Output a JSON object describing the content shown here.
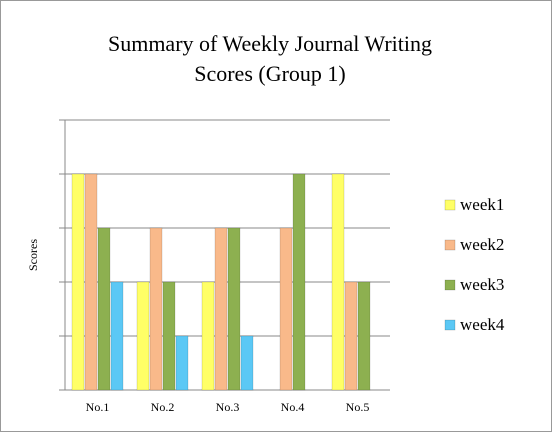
{
  "chart_data": {
    "type": "bar",
    "title": [
      "Summary of Weekly Journal Writing",
      "Scores (Group 1)"
    ],
    "ylabel": "Scores",
    "categories": [
      "No.1",
      "No.2",
      "No.3",
      "No.4",
      "No.5"
    ],
    "series": [
      {
        "name": "week1",
        "color": "#ffff66",
        "values": [
          4,
          2,
          2,
          0,
          4
        ]
      },
      {
        "name": "week2",
        "color": "#f9b98a",
        "values": [
          4,
          3,
          3,
          3,
          2
        ]
      },
      {
        "name": "week3",
        "color": "#8db050",
        "values": [
          3,
          2,
          3,
          4,
          2
        ]
      },
      {
        "name": "week4",
        "color": "#5bc8f5",
        "values": [
          2,
          1,
          1,
          0,
          0
        ]
      }
    ],
    "ylim": [
      0,
      5
    ],
    "yticks": [
      0,
      1,
      2,
      3,
      4,
      5
    ],
    "grid": true,
    "legend": "right"
  }
}
